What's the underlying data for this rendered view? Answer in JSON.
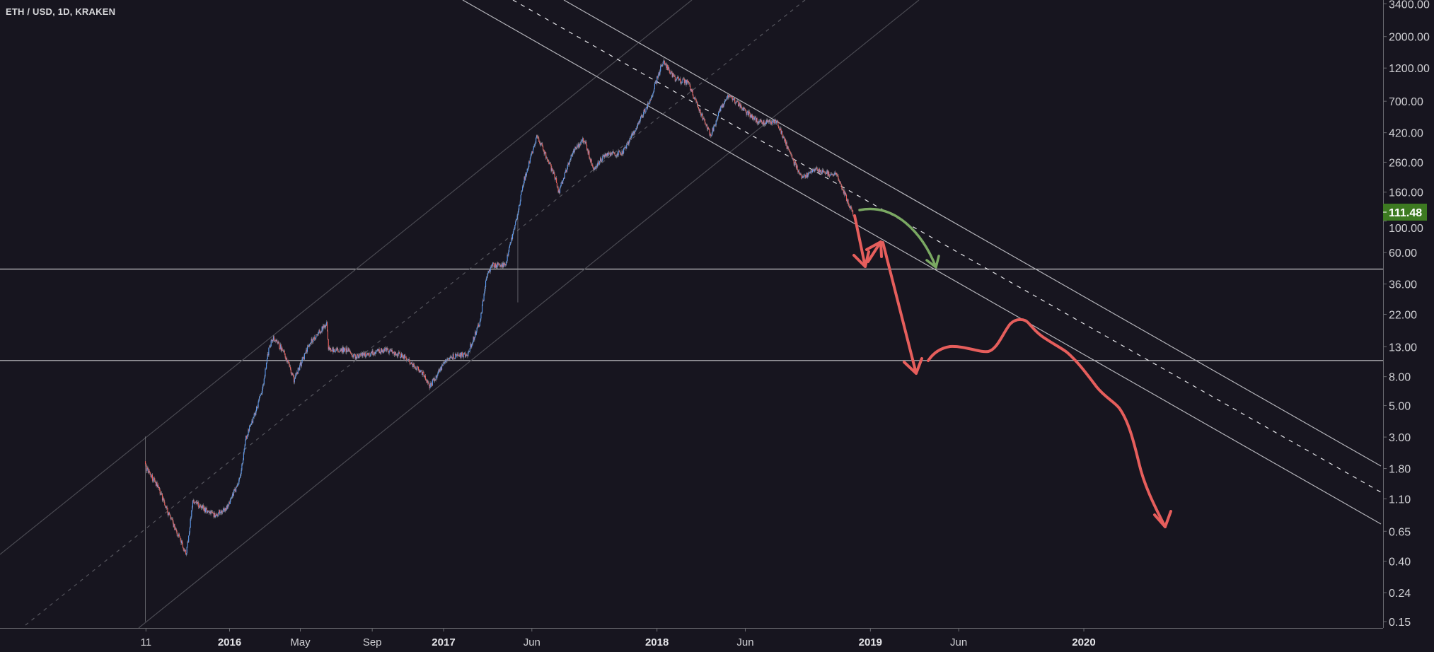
{
  "header": {
    "symbol_title": "ETH / USD, 1D, KRAKEN"
  },
  "colors": {
    "background": "#17151f",
    "up": "#5b9cf6",
    "down": "#ef5f5a",
    "wick": "#8a8a90",
    "last_price_bg": "#3d7a21",
    "forecast_red": "#e65e5c",
    "forecast_green": "#7aa862",
    "levels": "#c8c8cc"
  },
  "chart_data": {
    "type": "candlestick",
    "title": "ETH / USD, 1D, KRAKEN",
    "y_scale": "log",
    "ylim": [
      0.15,
      3400
    ],
    "xlim": [
      "2015-07-01",
      "2020-10-20"
    ],
    "grid": false,
    "y_ticks": [
      "3400.00",
      "2000.00",
      "1200.00",
      "700.00",
      "420.00",
      "260.00",
      "160.00",
      "100.00",
      "60.00",
      "36.00",
      "22.00",
      "13.00",
      "8.00",
      "5.00",
      "3.00",
      "1.80",
      "1.10",
      "0.65",
      "0.40",
      "0.24",
      "0.15"
    ],
    "x_ticks": [
      {
        "label": "11",
        "date": "2015-08-11",
        "bold": false
      },
      {
        "label": "2016",
        "date": "2016-01-01",
        "bold": true
      },
      {
        "label": "May",
        "date": "2016-05-01",
        "bold": false
      },
      {
        "label": "Sep",
        "date": "2016-09-01",
        "bold": false
      },
      {
        "label": "2017",
        "date": "2017-01-01",
        "bold": true
      },
      {
        "label": "Jun",
        "date": "2017-06-01",
        "bold": false
      },
      {
        "label": "2018",
        "date": "2018-01-01",
        "bold": true
      },
      {
        "label": "Jun",
        "date": "2018-06-01",
        "bold": false
      },
      {
        "label": "2019",
        "date": "2019-01-01",
        "bold": true
      },
      {
        "label": "Jun",
        "date": "2019-06-01",
        "bold": false
      },
      {
        "label": "2020",
        "date": "2020-01-01",
        "bold": true
      }
    ],
    "last_price": "111.48",
    "price_path": [
      [
        "2015-08-10",
        1.85
      ],
      [
        "2015-09-01",
        1.33
      ],
      [
        "2015-09-17",
        0.9
      ],
      [
        "2015-10-19",
        0.45
      ],
      [
        "2015-10-30",
        1.05
      ],
      [
        "2015-12-07",
        0.84
      ],
      [
        "2015-12-28",
        0.95
      ],
      [
        "2016-01-19",
        1.53
      ],
      [
        "2016-01-29",
        2.95
      ],
      [
        "2016-02-15",
        4.6
      ],
      [
        "2016-02-26",
        6.5
      ],
      [
        "2016-03-08",
        12.5
      ],
      [
        "2016-03-15",
        15
      ],
      [
        "2016-04-03",
        12
      ],
      [
        "2016-04-20",
        7.6
      ],
      [
        "2016-05-17",
        13.8
      ],
      [
        "2016-06-15",
        19
      ],
      [
        "2016-06-18",
        12.4
      ],
      [
        "2016-07-21",
        12.4
      ],
      [
        "2016-07-31",
        11
      ],
      [
        "2016-09-24",
        12.4
      ],
      [
        "2016-10-26",
        11
      ],
      [
        "2016-11-27",
        8.4
      ],
      [
        "2016-12-08",
        6.8
      ],
      [
        "2017-01-09",
        11
      ],
      [
        "2017-02-11",
        11.5
      ],
      [
        "2017-03-05",
        20
      ],
      [
        "2017-03-15",
        41
      ],
      [
        "2017-03-26",
        49
      ],
      [
        "2017-04-16",
        49
      ],
      [
        "2017-05-03",
        91
      ],
      [
        "2017-05-19",
        198
      ],
      [
        "2017-06-10",
        400
      ],
      [
        "2017-07-12",
        198
      ],
      [
        "2017-07-17",
        160
      ],
      [
        "2017-08-08",
        300
      ],
      [
        "2017-08-30",
        380
      ],
      [
        "2017-09-14",
        230
      ],
      [
        "2017-10-06",
        300
      ],
      [
        "2017-11-03",
        300
      ],
      [
        "2017-11-24",
        440
      ],
      [
        "2017-12-22",
        740
      ],
      [
        "2018-01-01",
        1000
      ],
      [
        "2018-01-11",
        1340
      ],
      [
        "2018-02-02",
        1000
      ],
      [
        "2018-02-23",
        950
      ],
      [
        "2018-03-17",
        570
      ],
      [
        "2018-04-03",
        400
      ],
      [
        "2018-04-19",
        610
      ],
      [
        "2018-05-05",
        780
      ],
      [
        "2018-05-27",
        620
      ],
      [
        "2018-06-23",
        500
      ],
      [
        "2018-07-25",
        500
      ],
      [
        "2018-08-16",
        300
      ],
      [
        "2018-09-06",
        200
      ],
      [
        "2018-09-28",
        230
      ],
      [
        "2018-11-05",
        210
      ],
      [
        "2018-11-21",
        144
      ],
      [
        "2018-12-02",
        111.48
      ]
    ],
    "ohlc_overrides": [
      {
        "date": "2015-08-10",
        "high": 3.03,
        "low": 0.15
      },
      {
        "date": "2017-05-08",
        "low": 26.7
      },
      {
        "date": "2018-01-13",
        "high": 1420
      }
    ],
    "horizontal_levels": [
      45.9,
      10.4
    ]
  }
}
